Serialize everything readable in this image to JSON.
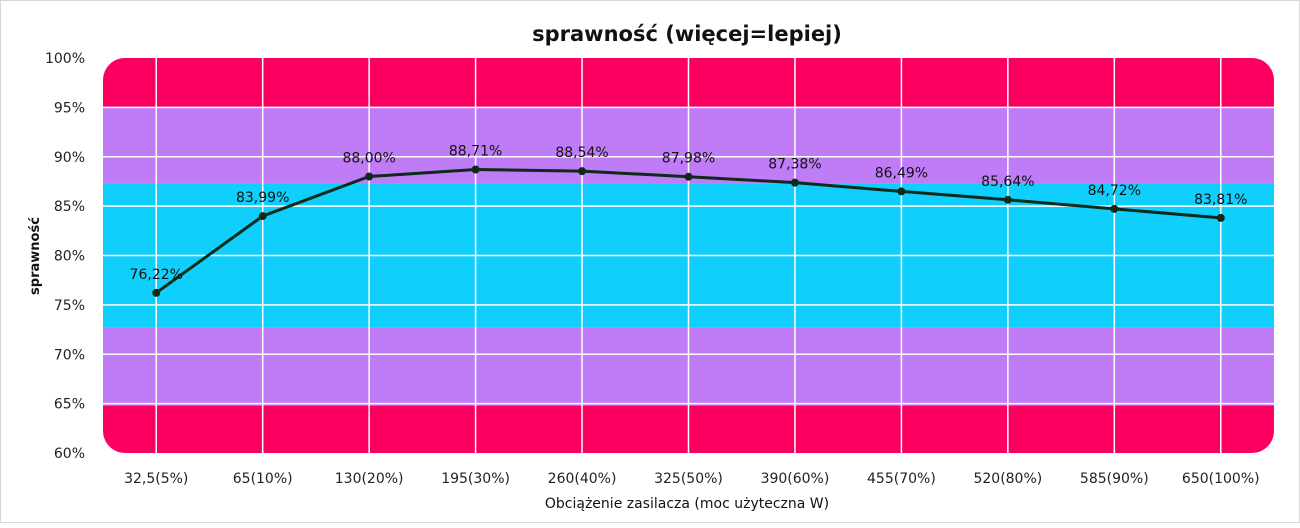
{
  "chart_data": {
    "type": "line",
    "title": "sprawność (więcej=lepiej)",
    "xlabel": "Obciążenie zasilacza (moc użyteczna W)",
    "ylabel": "sprawność",
    "categories": [
      "32,5(5%)",
      "65(10%)",
      "130(20%)",
      "195(30%)",
      "260(40%)",
      "325(50%)",
      "390(60%)",
      "455(70%)",
      "520(80%)",
      "585(90%)",
      "650(100%)"
    ],
    "series": [
      {
        "name": "sprawność",
        "values": [
          76.22,
          83.99,
          88.0,
          88.71,
          88.54,
          87.98,
          87.38,
          86.49,
          85.64,
          84.72,
          83.81
        ]
      }
    ],
    "data_labels": [
      "76,22%",
      "83,99%",
      "88,00%",
      "88,71%",
      "88,54%",
      "87,98%",
      "87,38%",
      "86,49%",
      "85,64%",
      "84,72%",
      "83,81%"
    ],
    "ylim": [
      60,
      100
    ],
    "yticks": [
      60,
      65,
      70,
      75,
      80,
      85,
      90,
      95,
      100
    ],
    "ytick_labels": [
      "60%",
      "65%",
      "70%",
      "75%",
      "80%",
      "85%",
      "90%",
      "95%",
      "100%"
    ],
    "grid": true,
    "bands": [
      {
        "from": 95,
        "to": 100,
        "color": "#fb0060"
      },
      {
        "from": 87.3,
        "to": 95,
        "color": "#c07cf6"
      },
      {
        "from": 72.7,
        "to": 87.3,
        "color": "#11cffc"
      },
      {
        "from": 64.8,
        "to": 72.7,
        "color": "#c07cf6"
      },
      {
        "from": 60,
        "to": 64.8,
        "color": "#fb0060"
      }
    ],
    "line_color": "#0d2a1a"
  }
}
